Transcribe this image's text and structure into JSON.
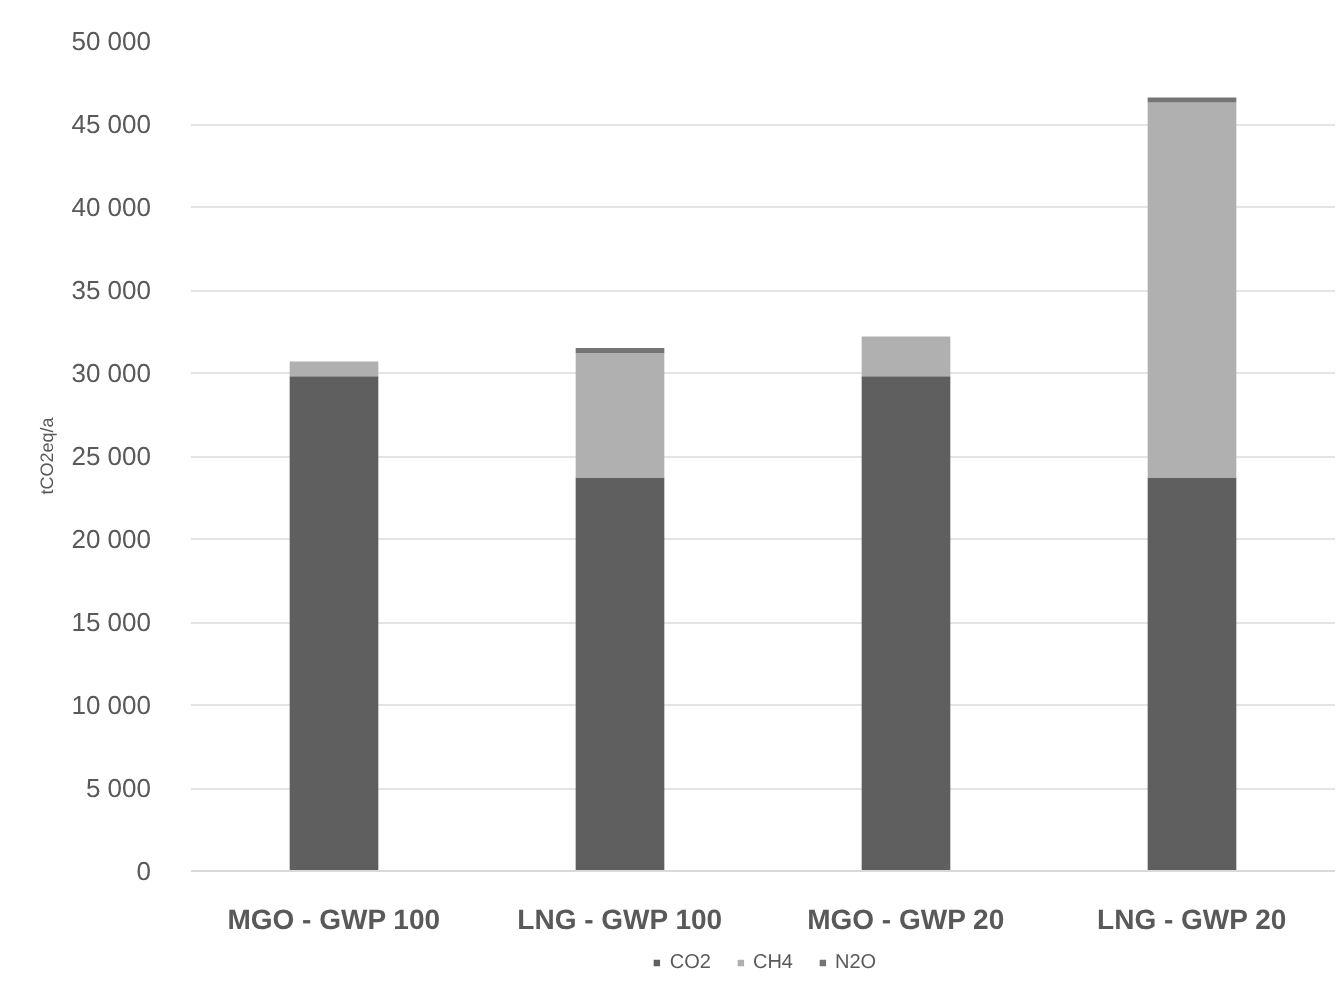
{
  "chart_data": {
    "type": "bar",
    "stacked": true,
    "ylabel": "tCO2eq/a",
    "categories": [
      "MGO - GWP 100",
      "LNG - GWP 100",
      "MGO - GWP 20",
      "LNG - GWP 20"
    ],
    "series": [
      {
        "name": "CO2",
        "color": "#5f5f5f",
        "values": [
          29800,
          23700,
          29800,
          23700
        ]
      },
      {
        "name": "CH4",
        "color": "#b0b0b0",
        "values": [
          900,
          7500,
          2400,
          22600
        ]
      },
      {
        "name": "N2O",
        "color": "#747474",
        "values": [
          0,
          300,
          0,
          300
        ]
      }
    ],
    "ylim": [
      0,
      50000
    ],
    "yticks": [
      {
        "value": 0,
        "label": "0"
      },
      {
        "value": 5000,
        "label": "5 000"
      },
      {
        "value": 10000,
        "label": "10 000"
      },
      {
        "value": 15000,
        "label": "15 000"
      },
      {
        "value": 20000,
        "label": "20 000"
      },
      {
        "value": 25000,
        "label": "25 000"
      },
      {
        "value": 30000,
        "label": "30 000"
      },
      {
        "value": 35000,
        "label": "35 000"
      },
      {
        "value": 40000,
        "label": "40 000"
      },
      {
        "value": 45000,
        "label": "45 000"
      },
      {
        "value": 50000,
        "label": "50 000"
      }
    ],
    "grid": "y",
    "legend": "bottom"
  }
}
